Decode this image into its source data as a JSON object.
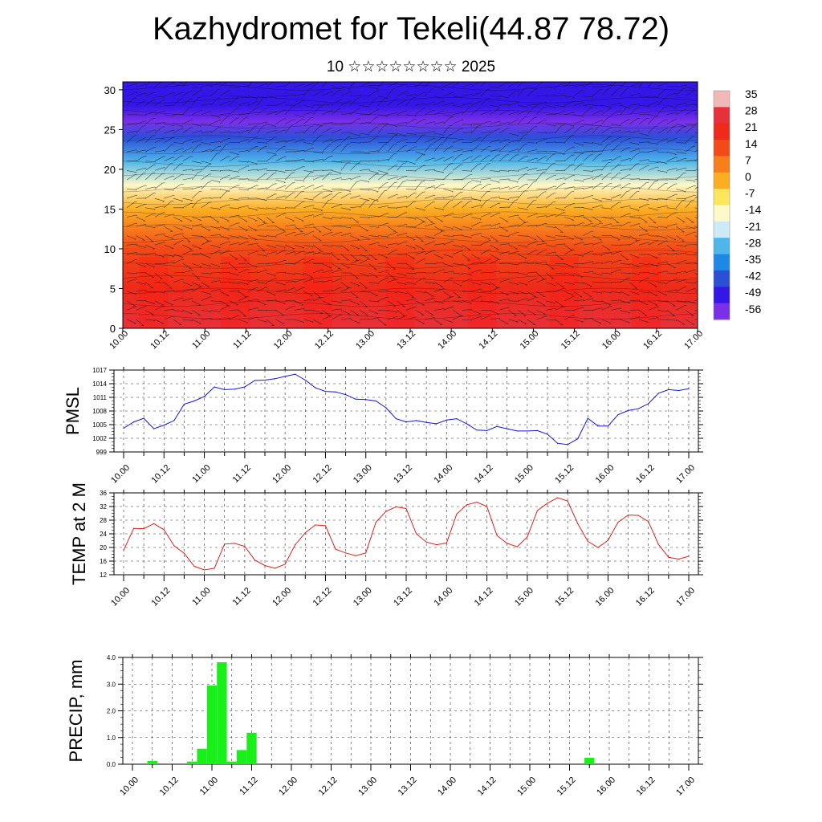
{
  "title": "Kazhydromet for Tekeli(44.87 78.72)",
  "subtitle": "10 ☆☆☆☆☆☆☆☆ 2025",
  "chart_data": [
    {
      "type": "heatmap",
      "title": "",
      "ylim": [
        0,
        31
      ],
      "yticks": [
        0,
        5,
        10,
        15,
        20,
        25,
        30
      ],
      "x_ticks": [
        "10.00",
        "10.12",
        "11.00",
        "11.12",
        "12.00",
        "12.12",
        "13.00",
        "13.12",
        "14.00",
        "14.12",
        "15.00",
        "15.12",
        "16.00",
        "16.12",
        "17.00"
      ],
      "colorbar_labels": [
        "35",
        "28",
        "21",
        "14",
        "7",
        "0",
        "-7",
        "-14",
        "-21",
        "-28",
        "-35",
        "-42",
        "-49",
        "-56"
      ],
      "colorbar_colors": [
        "#f2b8b8",
        "#e8303a",
        "#ee2a1a",
        "#f24a18",
        "#f87e1c",
        "#fcae22",
        "#fee65a",
        "#fff8c8",
        "#cfeaf7",
        "#4fb6ea",
        "#1e88e5",
        "#2c4fd8",
        "#3416e6",
        "#7a30e8"
      ],
      "profile_levels": [
        0,
        5,
        10,
        15,
        18,
        21,
        24,
        26,
        28,
        31
      ],
      "profile_values": [
        26,
        22,
        14,
        2,
        -14,
        -28,
        -42,
        -56,
        -49,
        -49
      ]
    },
    {
      "type": "line",
      "ylabel": "PMSL",
      "ylim": [
        999,
        1017
      ],
      "yticks": [
        999,
        1002,
        1005,
        1008,
        1011,
        1014,
        1017
      ],
      "x_ticks": [
        "10.00",
        "10.12",
        "11.00",
        "11.12",
        "12.00",
        "12.12",
        "13.00",
        "13.12",
        "14.00",
        "14.12",
        "15.00",
        "15.12",
        "16.00",
        "16.12",
        "17.00"
      ],
      "x": [
        0,
        3,
        6,
        9,
        12,
        15,
        18,
        21,
        24,
        27,
        30,
        33,
        36,
        39,
        42,
        45,
        48,
        51,
        54,
        57,
        60,
        63,
        66,
        69,
        72,
        75,
        78,
        81,
        84,
        87,
        90,
        93,
        96,
        99,
        102,
        105,
        108,
        111,
        114,
        117,
        120,
        123,
        126,
        129,
        132,
        135,
        138,
        141,
        144,
        147,
        150,
        153,
        156,
        159,
        162,
        165,
        168
      ],
      "values": [
        1004.2,
        1005.6,
        1006.4,
        1004.1,
        1004.9,
        1005.9,
        1009.5,
        1010.2,
        1011.2,
        1013.3,
        1012.7,
        1012.8,
        1013.3,
        1014.7,
        1014.8,
        1015.1,
        1015.6,
        1016.1,
        1014.8,
        1013.1,
        1012.3,
        1012.2,
        1011.6,
        1010.6,
        1010.5,
        1010.2,
        1008.7,
        1006.3,
        1005.6,
        1005.9,
        1005.5,
        1005.2,
        1006.0,
        1006.3,
        1005.2,
        1003.8,
        1003.7,
        1004.6,
        1004.1,
        1003.6,
        1003.6,
        1003.7,
        1002.9,
        1000.9,
        1000.6,
        1001.9,
        1006.4,
        1004.7,
        1004.7,
        1007.2,
        1008.1,
        1008.5,
        1009.6,
        1011.9,
        1012.7,
        1012.5,
        1012.9
      ],
      "color": "#1414d8"
    },
    {
      "type": "line",
      "ylabel": "TEMP at 2 M",
      "ylim": [
        12,
        36
      ],
      "yticks": [
        12,
        16,
        20,
        24,
        28,
        32,
        36
      ],
      "x_ticks": [
        "10.00",
        "10.12",
        "11.00",
        "11.12",
        "12.00",
        "12.12",
        "13.00",
        "13.12",
        "14.00",
        "14.12",
        "15.00",
        "15.12",
        "16.00",
        "16.12",
        "17.00"
      ],
      "x": [
        0,
        3,
        6,
        9,
        12,
        15,
        18,
        21,
        24,
        27,
        30,
        33,
        36,
        39,
        42,
        45,
        48,
        51,
        54,
        57,
        60,
        63,
        66,
        69,
        72,
        75,
        78,
        81,
        84,
        87,
        90,
        93,
        96,
        99,
        102,
        105,
        108,
        111,
        114,
        117,
        120,
        123,
        126,
        129,
        132,
        135,
        138,
        141,
        144,
        147,
        150,
        153,
        156,
        159,
        162,
        165,
        168
      ],
      "values": [
        19.2,
        25.6,
        25.5,
        27.0,
        25.2,
        20.5,
        18.3,
        14.5,
        13.4,
        13.9,
        21.0,
        21.2,
        20.3,
        16.3,
        14.7,
        13.9,
        15.1,
        20.8,
        24.3,
        26.6,
        26.4,
        19.5,
        18.4,
        17.6,
        18.4,
        27.4,
        30.6,
        31.9,
        31.4,
        24.0,
        21.6,
        20.8,
        21.3,
        29.8,
        32.5,
        33.3,
        32.0,
        23.5,
        21.2,
        20.2,
        23.1,
        30.8,
        33.0,
        34.6,
        33.6,
        27.0,
        21.8,
        20.0,
        22.1,
        27.4,
        29.5,
        29.4,
        27.6,
        20.9,
        17.1,
        16.6,
        17.4
      ],
      "color": "#e0201c"
    },
    {
      "type": "bar",
      "ylabel": "PRECIP, mm",
      "ylim": [
        0.0,
        4.0
      ],
      "yticks": [
        "0.0",
        "1.0",
        "2.0",
        "3.0",
        "4.0"
      ],
      "x_ticks": [
        "10.00",
        "10.12",
        "11.00",
        "11.12",
        "12.00",
        "12.12",
        "13.00",
        "13.12",
        "14.00",
        "14.12",
        "15.00",
        "15.12",
        "16.00",
        "16.12",
        "17.00"
      ],
      "bars": [
        {
          "x": 6,
          "value": 0.12
        },
        {
          "x": 18,
          "value": 0.1
        },
        {
          "x": 21,
          "value": 0.58
        },
        {
          "x": 24,
          "value": 2.95
        },
        {
          "x": 27,
          "value": 3.82
        },
        {
          "x": 30,
          "value": 0.1
        },
        {
          "x": 33,
          "value": 0.53
        },
        {
          "x": 36,
          "value": 1.18
        },
        {
          "x": 138,
          "value": 0.24
        }
      ],
      "color": "#19f019"
    }
  ]
}
